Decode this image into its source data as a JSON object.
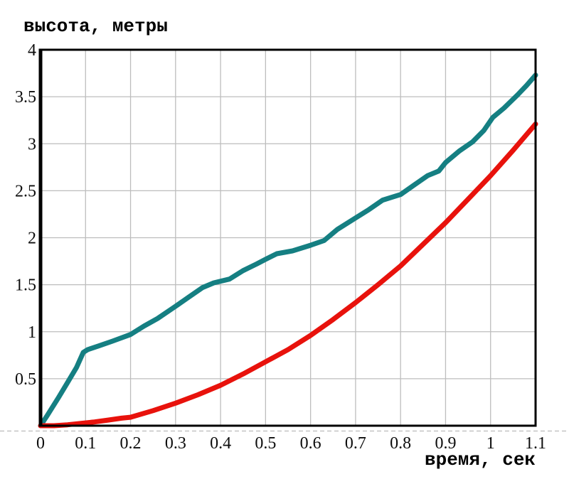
{
  "chart_data": {
    "type": "line",
    "title": "",
    "ylabel": "высота, метры",
    "xlabel": "время, сек",
    "xlim": [
      0,
      1.1
    ],
    "ylim": [
      0,
      4
    ],
    "grid": true,
    "legend": "none",
    "axis_color": "#000000",
    "grid_color": "#bdbdbd",
    "dashed_baseline_color": "#c4c4c4",
    "x_ticks": [
      0,
      0.1,
      0.2,
      0.3,
      0.4,
      0.5,
      0.6,
      0.7,
      0.8,
      0.9,
      1,
      1.1
    ],
    "x_tick_labels": [
      "0",
      "0.1",
      "0.2",
      "0.3",
      "0.4",
      "0.5",
      "0.6",
      "0.7",
      "0.8",
      "0.9",
      "1",
      "1.1"
    ],
    "y_ticks": [
      0.5,
      1,
      1.5,
      2,
      2.5,
      3,
      3.5,
      4
    ],
    "y_tick_labels": [
      "0.5",
      "1",
      "1.5",
      "2",
      "2.5",
      "3",
      "3.5",
      "4"
    ],
    "series": [
      {
        "id": "teal-curve",
        "color": "#157f82",
        "stroke_width": 7,
        "points": [
          [
            0,
            0
          ],
          [
            0.015,
            0.11
          ],
          [
            0.04,
            0.3
          ],
          [
            0.06,
            0.46
          ],
          [
            0.08,
            0.62
          ],
          [
            0.095,
            0.78
          ],
          [
            0.105,
            0.81
          ],
          [
            0.13,
            0.85
          ],
          [
            0.16,
            0.9
          ],
          [
            0.2,
            0.97
          ],
          [
            0.23,
            1.06
          ],
          [
            0.26,
            1.14
          ],
          [
            0.3,
            1.27
          ],
          [
            0.33,
            1.37
          ],
          [
            0.36,
            1.47
          ],
          [
            0.385,
            1.52
          ],
          [
            0.42,
            1.56
          ],
          [
            0.45,
            1.65
          ],
          [
            0.48,
            1.72
          ],
          [
            0.5,
            1.77
          ],
          [
            0.525,
            1.83
          ],
          [
            0.56,
            1.86
          ],
          [
            0.6,
            1.92
          ],
          [
            0.63,
            1.97
          ],
          [
            0.66,
            2.09
          ],
          [
            0.7,
            2.21
          ],
          [
            0.73,
            2.3
          ],
          [
            0.76,
            2.4
          ],
          [
            0.8,
            2.46
          ],
          [
            0.83,
            2.56
          ],
          [
            0.86,
            2.66
          ],
          [
            0.885,
            2.71
          ],
          [
            0.9,
            2.8
          ],
          [
            0.93,
            2.92
          ],
          [
            0.96,
            3.02
          ],
          [
            0.985,
            3.14
          ],
          [
            1.005,
            3.28
          ],
          [
            1.03,
            3.38
          ],
          [
            1.06,
            3.52
          ],
          [
            1.08,
            3.62
          ],
          [
            1.1,
            3.73
          ]
        ]
      },
      {
        "id": "red-curve",
        "color": "#e8120c",
        "stroke_width": 7,
        "points": [
          [
            0,
            0
          ],
          [
            0.03,
            0
          ],
          [
            0.06,
            0.01
          ],
          [
            0.09,
            0.025
          ],
          [
            0.12,
            0.04
          ],
          [
            0.15,
            0.06
          ],
          [
            0.18,
            0.08
          ],
          [
            0.2,
            0.09
          ],
          [
            0.25,
            0.16
          ],
          [
            0.3,
            0.24
          ],
          [
            0.35,
            0.33
          ],
          [
            0.4,
            0.43
          ],
          [
            0.45,
            0.55
          ],
          [
            0.5,
            0.68
          ],
          [
            0.55,
            0.81
          ],
          [
            0.6,
            0.96
          ],
          [
            0.65,
            1.13
          ],
          [
            0.7,
            1.31
          ],
          [
            0.75,
            1.5
          ],
          [
            0.8,
            1.7
          ],
          [
            0.85,
            1.93
          ],
          [
            0.9,
            2.16
          ],
          [
            0.95,
            2.41
          ],
          [
            1.0,
            2.66
          ],
          [
            1.05,
            2.93
          ],
          [
            1.1,
            3.21
          ]
        ]
      }
    ]
  }
}
